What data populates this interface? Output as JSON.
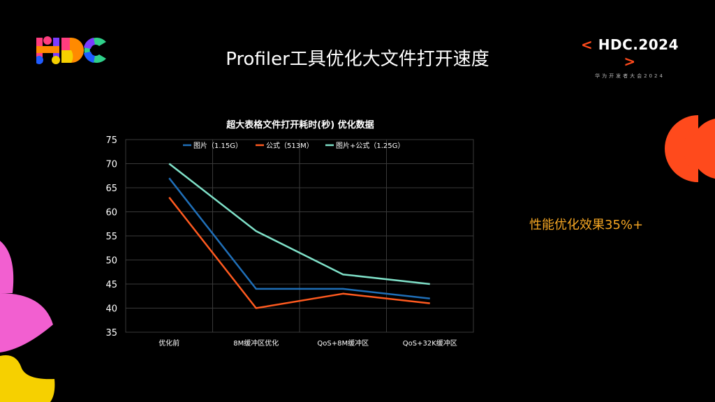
{
  "brand": {
    "bracket_left": "<",
    "name": "HDC.2024",
    "bracket_right": ">",
    "subtitle": "华为开发者大会2024"
  },
  "slide": {
    "title": "Profiler工具优化大文件打开速度",
    "annotation": "性能优化效果35%+"
  },
  "colors": {
    "background": "#000000",
    "accent_orange": "#ff4a1c",
    "annotation": "#f5a623",
    "pink": "#f25fd0",
    "yellow": "#f6d000"
  },
  "chart_data": {
    "type": "line",
    "title": "超大表格文件打开耗时(秒) 优化数据",
    "categories": [
      "优化前",
      "8M缓冲区优化",
      "QoS+8M缓冲区",
      "QoS+32K缓冲区"
    ],
    "ylim": [
      35,
      75
    ],
    "yticks": [
      35,
      40,
      45,
      50,
      55,
      60,
      65,
      70,
      75
    ],
    "grid": true,
    "legend_position": "top",
    "series": [
      {
        "name": "图片（1.15G）",
        "color": "#1f6fb8",
        "values": [
          67,
          44,
          44,
          42
        ]
      },
      {
        "name": "公式（513M）",
        "color": "#ff5a1f",
        "values": [
          63,
          40,
          43,
          41
        ]
      },
      {
        "name": "图片+公式（1.25G）",
        "color": "#7fe0c8",
        "values": [
          70,
          56,
          47,
          45
        ]
      }
    ]
  }
}
